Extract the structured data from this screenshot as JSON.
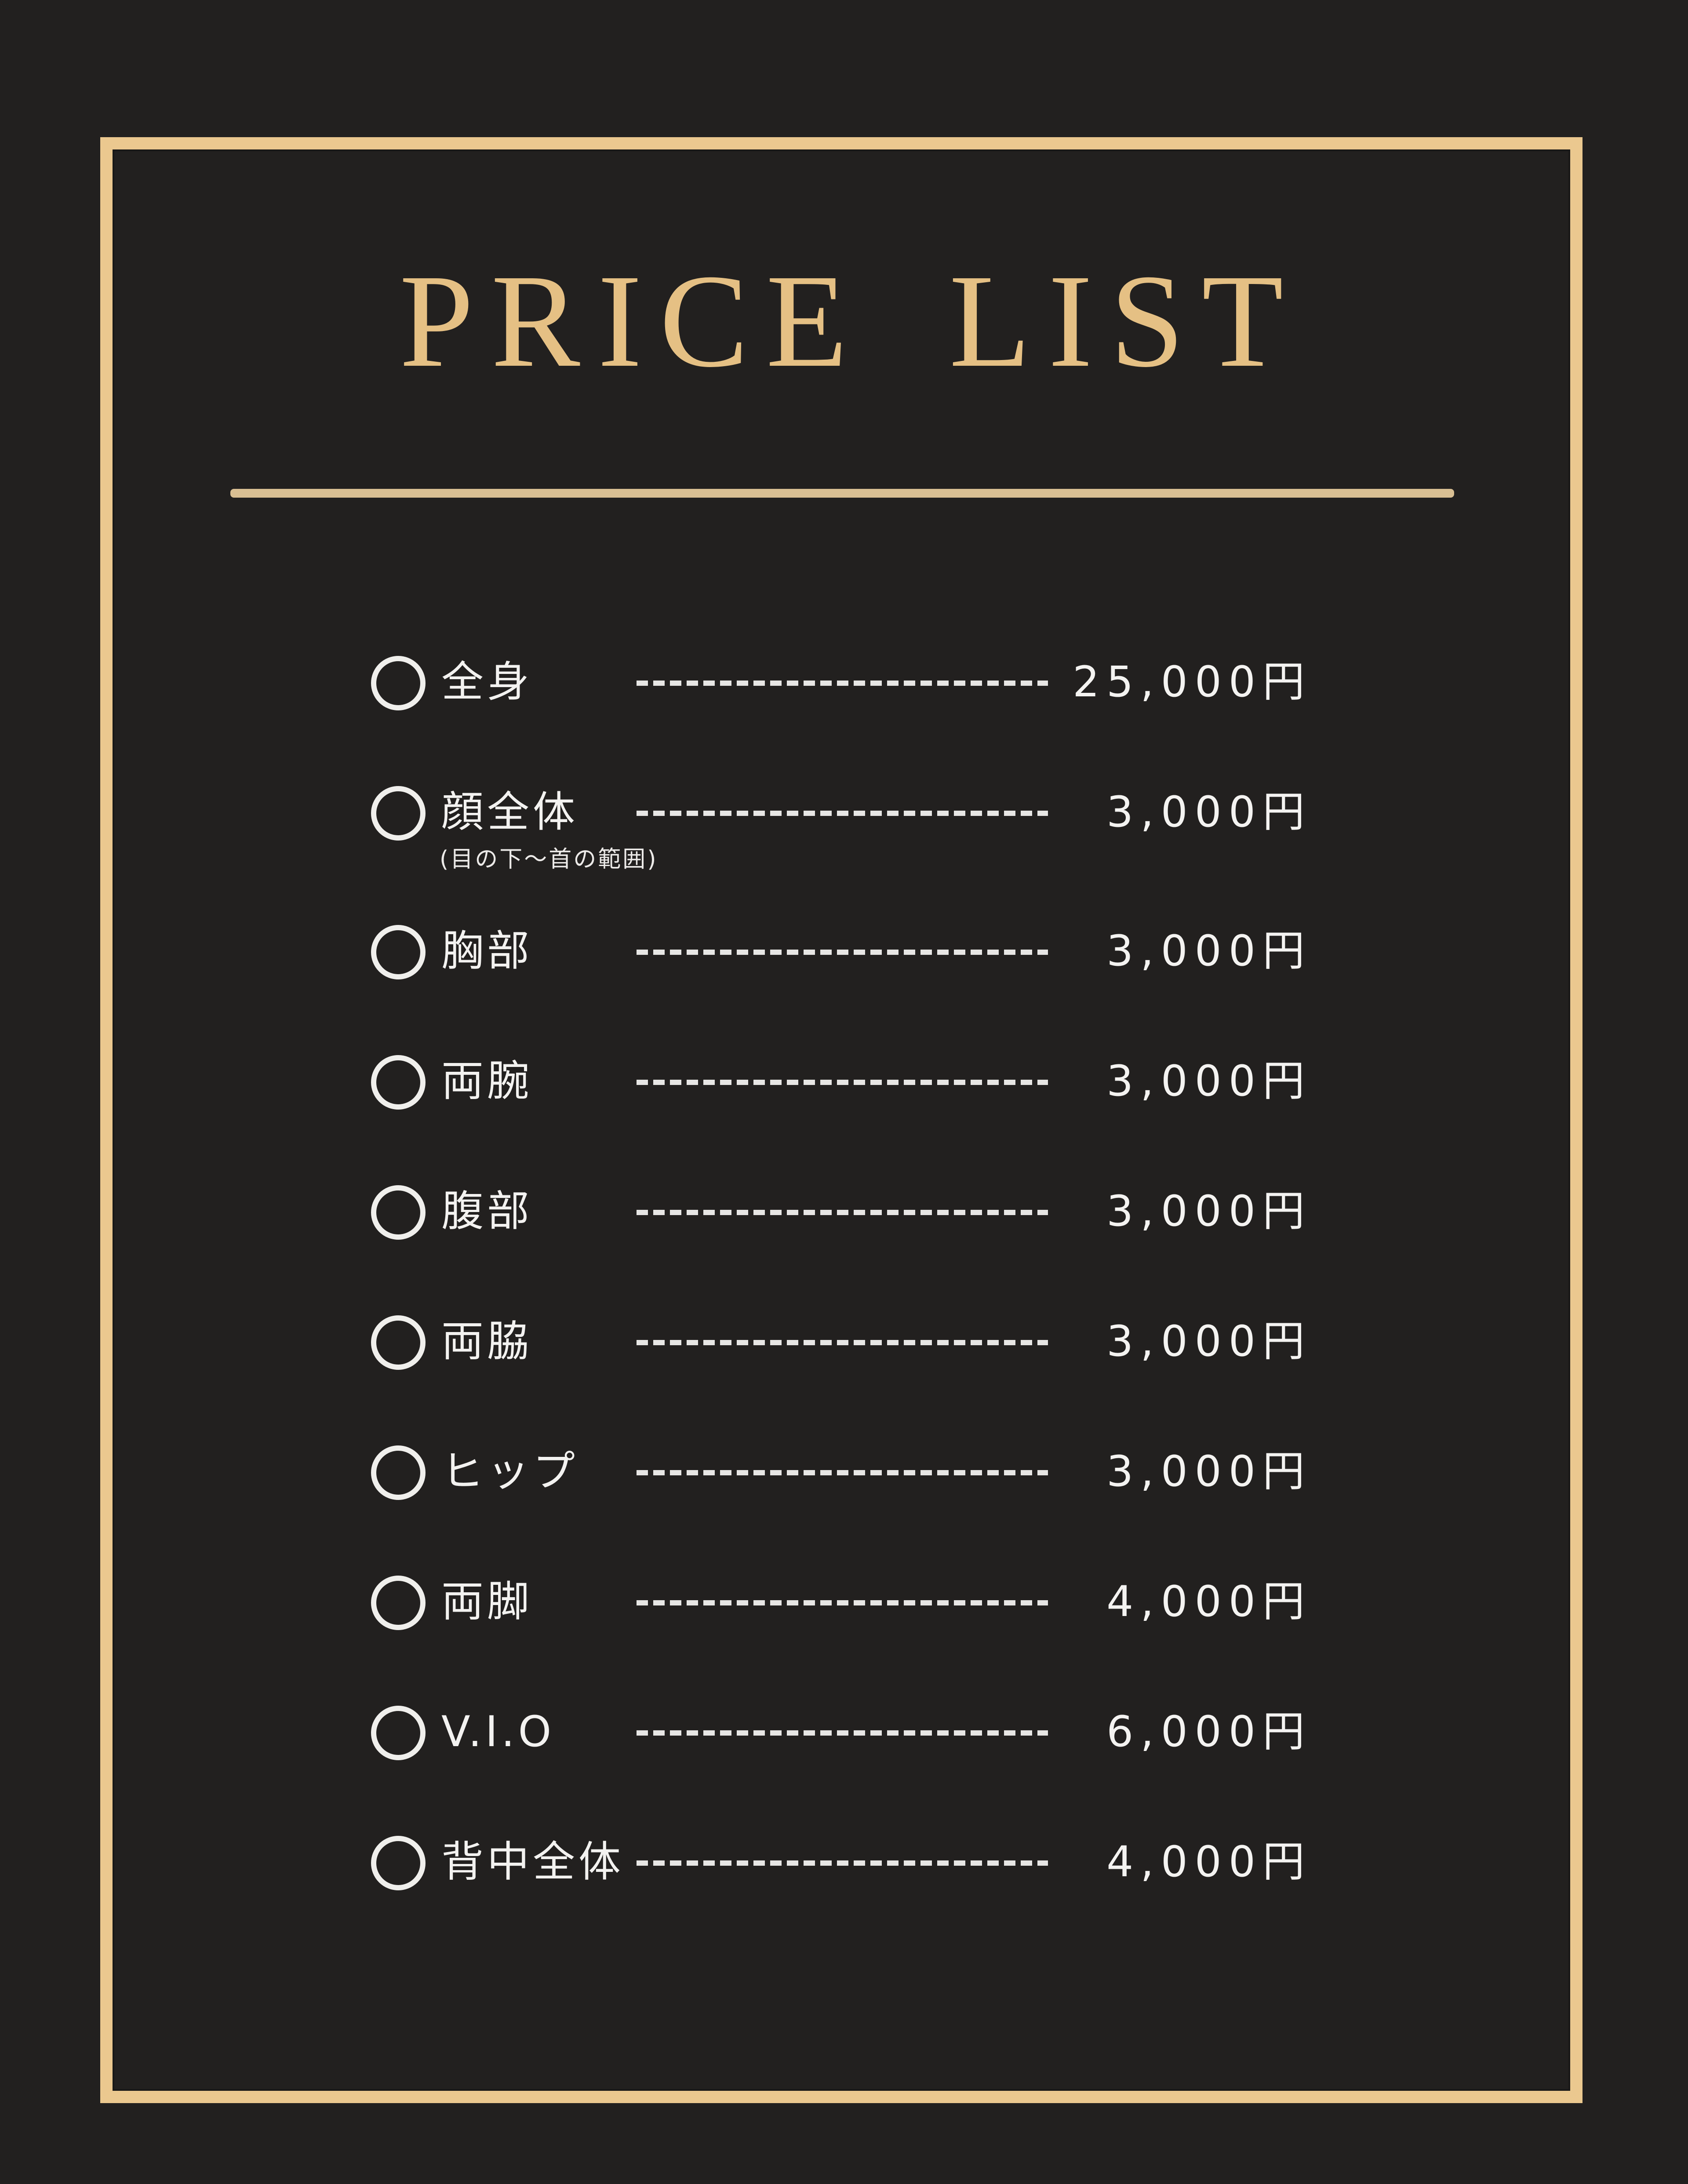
{
  "title": "PRICE LIST",
  "items": [
    {
      "label": "全身",
      "note": "",
      "price": "25,000円"
    },
    {
      "label": "顔全体",
      "note": "(目の下～首の範囲)",
      "price": "3,000円"
    },
    {
      "label": "胸部",
      "note": "",
      "price": "3,000円"
    },
    {
      "label": "両腕",
      "note": "",
      "price": "3,000円"
    },
    {
      "label": "腹部",
      "note": "",
      "price": "3,000円"
    },
    {
      "label": "両脇",
      "note": "",
      "price": "3,000円"
    },
    {
      "label": "ヒップ",
      "note": "",
      "price": "3,000円"
    },
    {
      "label": "両脚",
      "note": "",
      "price": "4,000円"
    },
    {
      "label": "V.I.O",
      "note": "",
      "price": "6,000円"
    },
    {
      "label": "背中全体",
      "note": "",
      "price": "4,000円"
    }
  ],
  "colors": {
    "background": "#22201f",
    "frame_gold": "#ebc88f",
    "divider_gold": "#d9bf93",
    "title_gold": "#e5c084",
    "text_white": "#f3f2f0"
  }
}
